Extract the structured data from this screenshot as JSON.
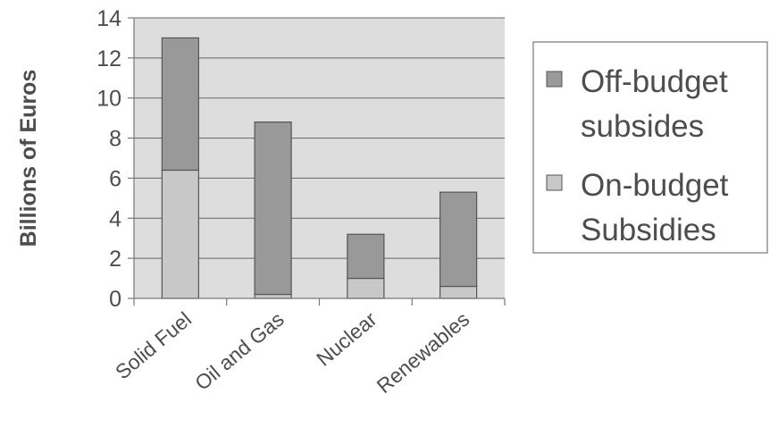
{
  "chart_data": {
    "type": "bar",
    "stacked": true,
    "title": "",
    "xlabel": "",
    "ylabel": "Billions of Euros",
    "ylim": [
      0,
      14
    ],
    "yticks": [
      0,
      2,
      4,
      6,
      8,
      10,
      12,
      14
    ],
    "grid": true,
    "legend_position": "right",
    "categories": [
      "Solid Fuel",
      "Oil and Gas",
      "Nuclear",
      "Renewables"
    ],
    "series": [
      {
        "name": "On-budget Subsidies",
        "values": [
          6.4,
          0.2,
          1.0,
          0.6
        ],
        "color": "#c8c8c8"
      },
      {
        "name": "Off-budget subsides",
        "values": [
          6.6,
          8.6,
          2.2,
          4.7
        ],
        "color": "#999999"
      }
    ],
    "legend": [
      {
        "lines": [
          "Off-budget",
          "subsides"
        ],
        "color": "#999999"
      },
      {
        "lines": [
          "On-budget",
          "Subsidies"
        ],
        "color": "#c8c8c8"
      }
    ],
    "plot_background": "#dddddd"
  }
}
